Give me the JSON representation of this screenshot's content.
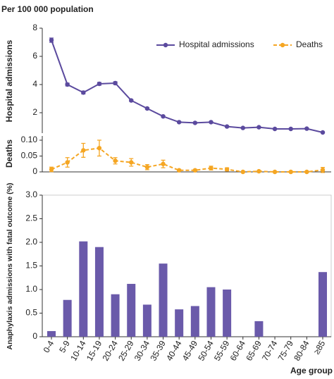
{
  "chart_data": [
    {
      "type": "line",
      "y_label_top": "Per 100 000 population",
      "ylabel": "Hospital admissions",
      "y2label": "Deaths",
      "legend": "upper right",
      "ylim": [
        0.5,
        8
      ],
      "yticks": [
        2,
        4,
        6,
        8
      ],
      "y2lim": [
        0,
        0.12
      ],
      "y2ticks": [
        0,
        0.05,
        {
          "value": 0.1,
          "label": "0.10"
        }
      ],
      "series": [
        {
          "name": "Hospital admissions",
          "color": "#5b4a9e",
          "dash": false,
          "values": [
            7.15,
            4.0,
            3.43,
            4.05,
            4.1,
            2.87,
            2.3,
            1.74,
            1.33,
            1.28,
            1.33,
            1.02,
            0.92,
            0.97,
            0.85,
            0.85,
            0.87,
            0.6
          ],
          "errors": [
            0.15,
            0.1,
            0.1,
            0.1,
            0.1,
            0.06,
            0.06,
            0.05,
            0.04,
            0.04,
            0.04,
            0.04,
            0.04,
            0.04,
            0.04,
            0.04,
            0.04,
            0.04
          ]
        },
        {
          "name": "Deaths",
          "color": "#f5a623",
          "dash": true,
          "axis": "y2",
          "values": [
            0.008,
            0.03,
            0.068,
            0.075,
            0.035,
            0.03,
            0.015,
            0.025,
            0.005,
            0.005,
            0.012,
            0.008,
            0,
            0.002,
            0,
            0,
            0,
            0.006
          ],
          "errors": [
            0.007,
            0.015,
            0.022,
            0.025,
            0.01,
            0.012,
            0.008,
            0.012,
            0.003,
            0.003,
            0.006,
            0.005,
            0.002,
            0.002,
            0.002,
            0.002,
            0.002,
            0.008
          ]
        }
      ]
    },
    {
      "type": "bar",
      "ylabel": "Anaphylaxis admissions with fatal outcome (%)",
      "xlabel": "Age group",
      "color": "#6a5aaa",
      "categories": [
        "0-4",
        "5-9",
        "10-14",
        "15-19",
        "20-24",
        "25-29",
        "30-34",
        "35-39",
        "40-44",
        "45-49",
        "50-54",
        "55-59",
        "60-64",
        "65-69",
        "70-74",
        "75-79",
        "80-84",
        "≥85"
      ],
      "values": [
        0.12,
        0.78,
        2.02,
        1.9,
        0.9,
        1.12,
        0.68,
        1.55,
        0.58,
        0.65,
        1.05,
        1.0,
        0,
        0.33,
        0,
        0,
        0,
        1.37
      ],
      "ylim": [
        0,
        3
      ],
      "yticks": [
        0,
        {
          "value": 0.5,
          "label": "0.5"
        },
        {
          "value": 1,
          "label": "1.0"
        },
        {
          "value": 1.5,
          "label": "1.5"
        },
        {
          "value": 2,
          "label": "2.0"
        },
        {
          "value": 2.5,
          "label": "2.5"
        },
        {
          "value": 3,
          "label": "3.0"
        }
      ]
    }
  ]
}
